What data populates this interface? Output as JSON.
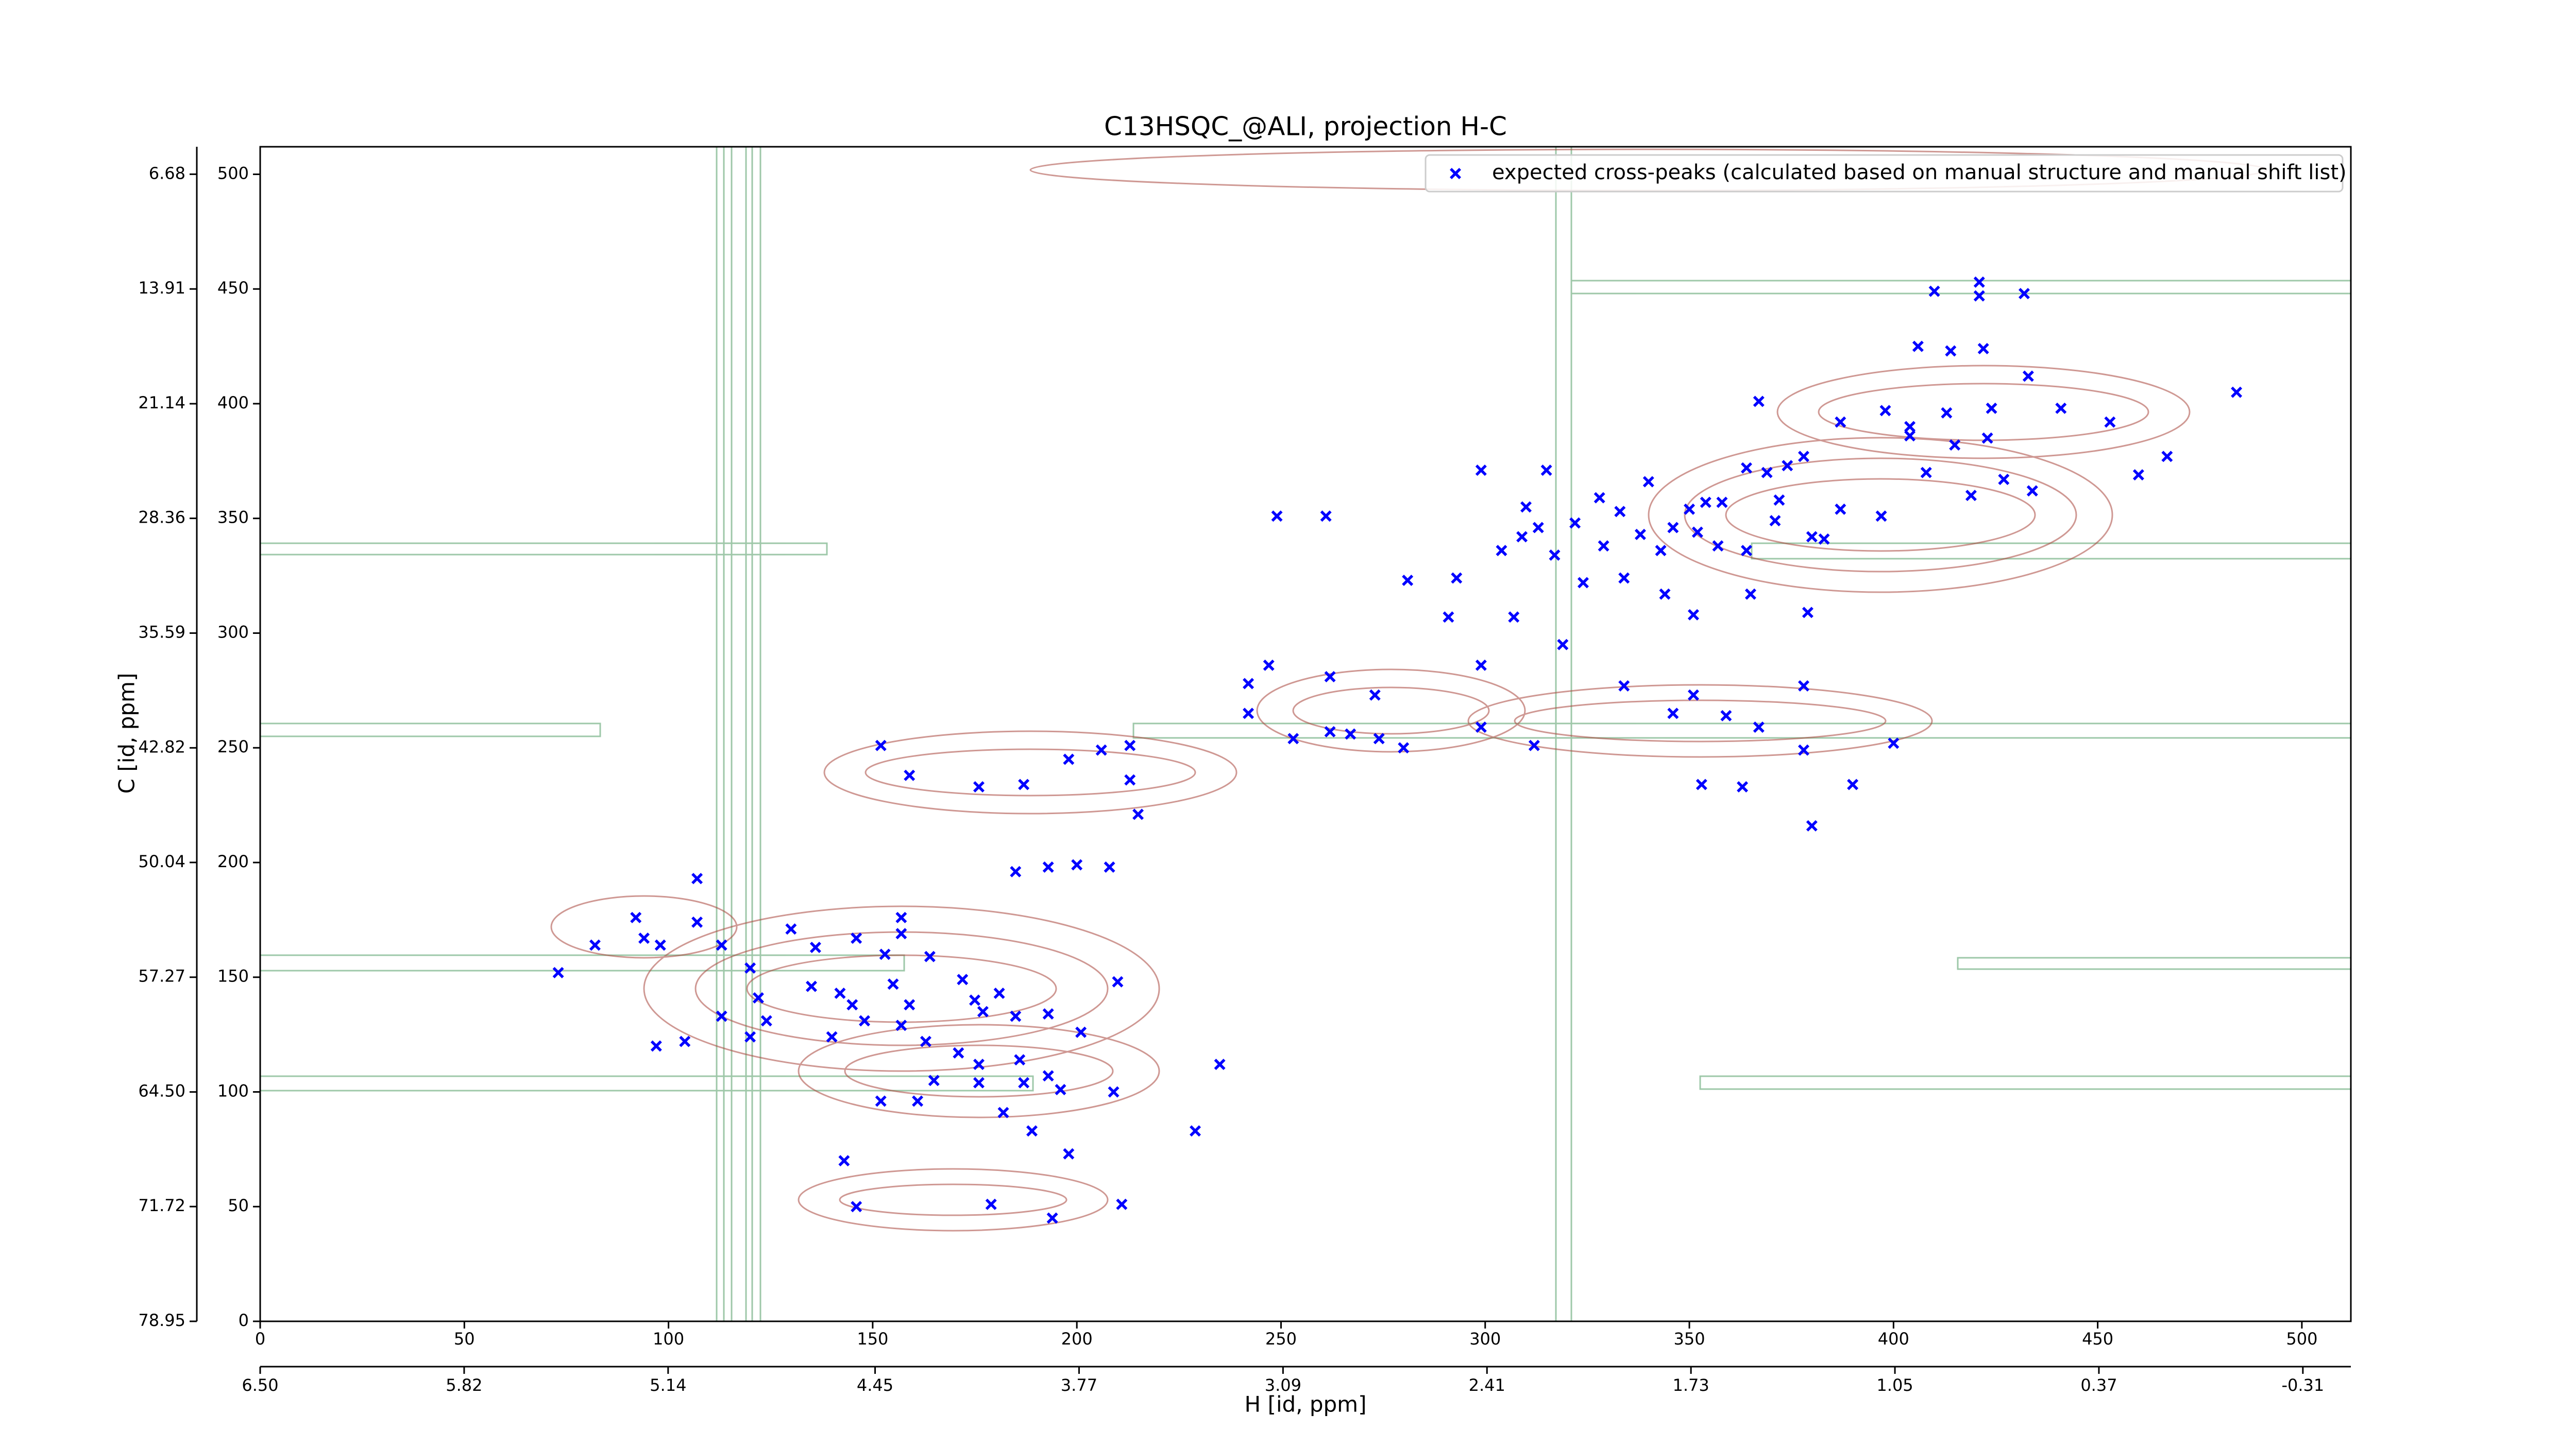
{
  "chart_data": {
    "type": "scatter",
    "title": "C13HSQC_@ALI, projection H-C",
    "xlabel": "H [id, ppm]",
    "ylabel": "C [id, ppm]",
    "xlim": [
      0,
      512
    ],
    "ylim": [
      0,
      512
    ],
    "xticks": [
      0,
      50,
      100,
      150,
      200,
      250,
      300,
      350,
      400,
      450,
      500
    ],
    "yticks": [
      0,
      50,
      100,
      150,
      200,
      250,
      300,
      350,
      400,
      450,
      500
    ],
    "x2lim": [
      6.5,
      -0.47
    ],
    "x2ticks": [
      {
        "value": 6.5,
        "label": "6.50"
      },
      5.82,
      5.14,
      4.45,
      3.77,
      3.09,
      2.41,
      1.73,
      1.05,
      0.37,
      -0.31
    ],
    "y2lim": [
      78.95,
      4.95
    ],
    "y2ticks": [
      78.95,
      71.72,
      {
        "value": 64.5,
        "label": "64.50"
      },
      57.27,
      50.04,
      42.82,
      35.59,
      28.36,
      21.14,
      13.91,
      6.68
    ],
    "legend": "upper right",
    "series": [
      {
        "name": "expected cross-peaks (calculated based on manual structure and manual shift list)",
        "color": "#0000ff",
        "x": [
          410,
          421,
          421,
          432,
          406,
          414,
          422,
          433,
          441,
          453,
          484,
          467,
          460,
          367,
          398,
          404,
          413,
          424,
          387,
          378,
          404,
          415,
          423,
          408,
          427,
          434,
          419,
          397,
          387,
          380,
          372,
          374,
          369,
          364,
          358,
          354,
          350,
          346,
          352,
          357,
          364,
          371,
          383,
          340,
          343,
          338,
          333,
          328,
          329,
          322,
          313,
          310,
          309,
          317,
          324,
          334,
          344,
          351,
          365,
          379,
          315,
          304,
          293,
          281,
          291,
          307,
          319,
          299,
          334,
          351,
          359,
          367,
          378,
          346,
          378,
          400,
          390,
          380,
          363,
          353,
          312,
          299,
          299,
          242,
          247,
          253,
          262,
          267,
          274,
          280,
          273,
          262,
          242,
          249,
          261,
          152,
          159,
          176,
          187,
          198,
          206,
          213,
          213,
          215,
          185,
          193,
          200,
          208,
          107,
          92,
          94,
          82,
          98,
          107,
          113,
          73,
          120,
          130,
          136,
          146,
          153,
          157,
          164,
          157,
          135,
          122,
          113,
          124,
          142,
          145,
          148,
          155,
          159,
          172,
          175,
          181,
          177,
          185,
          193,
          201,
          210,
          120,
          104,
          97,
          140,
          157,
          163,
          171,
          176,
          186,
          193,
          196,
          187,
          165,
          176,
          152,
          161,
          182,
          189,
          209,
          198,
          235,
          229,
          143,
          146,
          211,
          194,
          179
        ],
        "values": [
          449,
          453,
          447,
          448,
          425,
          423,
          424,
          412,
          398,
          392,
          405,
          377,
          369,
          401,
          397,
          390,
          396,
          398,
          392,
          377,
          386,
          382,
          385,
          370,
          367,
          362,
          360,
          351,
          354,
          342,
          358,
          373,
          370,
          372,
          357,
          357,
          354,
          346,
          344,
          338,
          336,
          349,
          341,
          366,
          336,
          343,
          353,
          359,
          338,
          348,
          346,
          355,
          342,
          334,
          322,
          324,
          317,
          308,
          317,
          309,
          371,
          336,
          324,
          323,
          307,
          307,
          295,
          371,
          277,
          273,
          264,
          259,
          277,
          265,
          249,
          252,
          234,
          216,
          233,
          234,
          251,
          286,
          259,
          278,
          286,
          254,
          257,
          256,
          254,
          250,
          273,
          281,
          265,
          351,
          351,
          251,
          238,
          233,
          234,
          245,
          249,
          251,
          236,
          221,
          196,
          198,
          199,
          198,
          193,
          176,
          167,
          164,
          164,
          174,
          164,
          152,
          154,
          171,
          163,
          167,
          160,
          169,
          159,
          176,
          146,
          141,
          133,
          131,
          143,
          138,
          131,
          147,
          138,
          149,
          140,
          143,
          135,
          133,
          134,
          126,
          148,
          124,
          122,
          120,
          124,
          129,
          122,
          117,
          112,
          114,
          107,
          101,
          104,
          105,
          104,
          96,
          96,
          91,
          83,
          100,
          73,
          112,
          83,
          70,
          50,
          51,
          45,
          51
        ]
      }
    ]
  }
}
